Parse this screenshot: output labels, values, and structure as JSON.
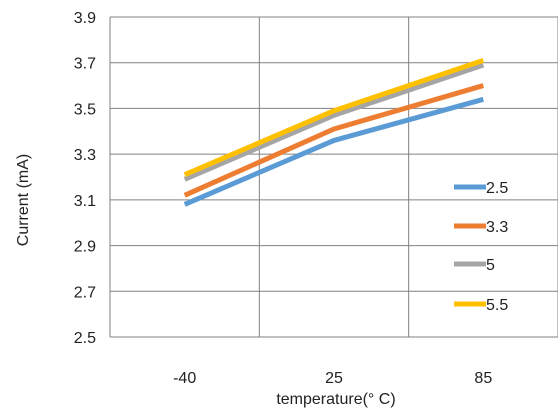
{
  "chart_data": {
    "type": "line",
    "title": "",
    "xlabel": "temperature(° C)",
    "ylabel": "Current (mA)",
    "categories": [
      "-40",
      "25",
      "85"
    ],
    "ylim": [
      2.5,
      3.9
    ],
    "yticks": [
      "2.5",
      "2.7",
      "2.9",
      "3.1",
      "3.3",
      "3.5",
      "3.7",
      "3.9"
    ],
    "grid": true,
    "legend_position": "right",
    "series": [
      {
        "name": "2.5",
        "values": [
          3.08,
          3.36,
          3.54
        ],
        "color": "#5B9BD5"
      },
      {
        "name": "3.3",
        "values": [
          3.12,
          3.41,
          3.6
        ],
        "color": "#ED7D31"
      },
      {
        "name": "5",
        "values": [
          3.19,
          3.47,
          3.69
        ],
        "color": "#A5A5A5"
      },
      {
        "name": "5.5",
        "values": [
          3.21,
          3.49,
          3.71
        ],
        "color": "#FFC000"
      }
    ]
  }
}
